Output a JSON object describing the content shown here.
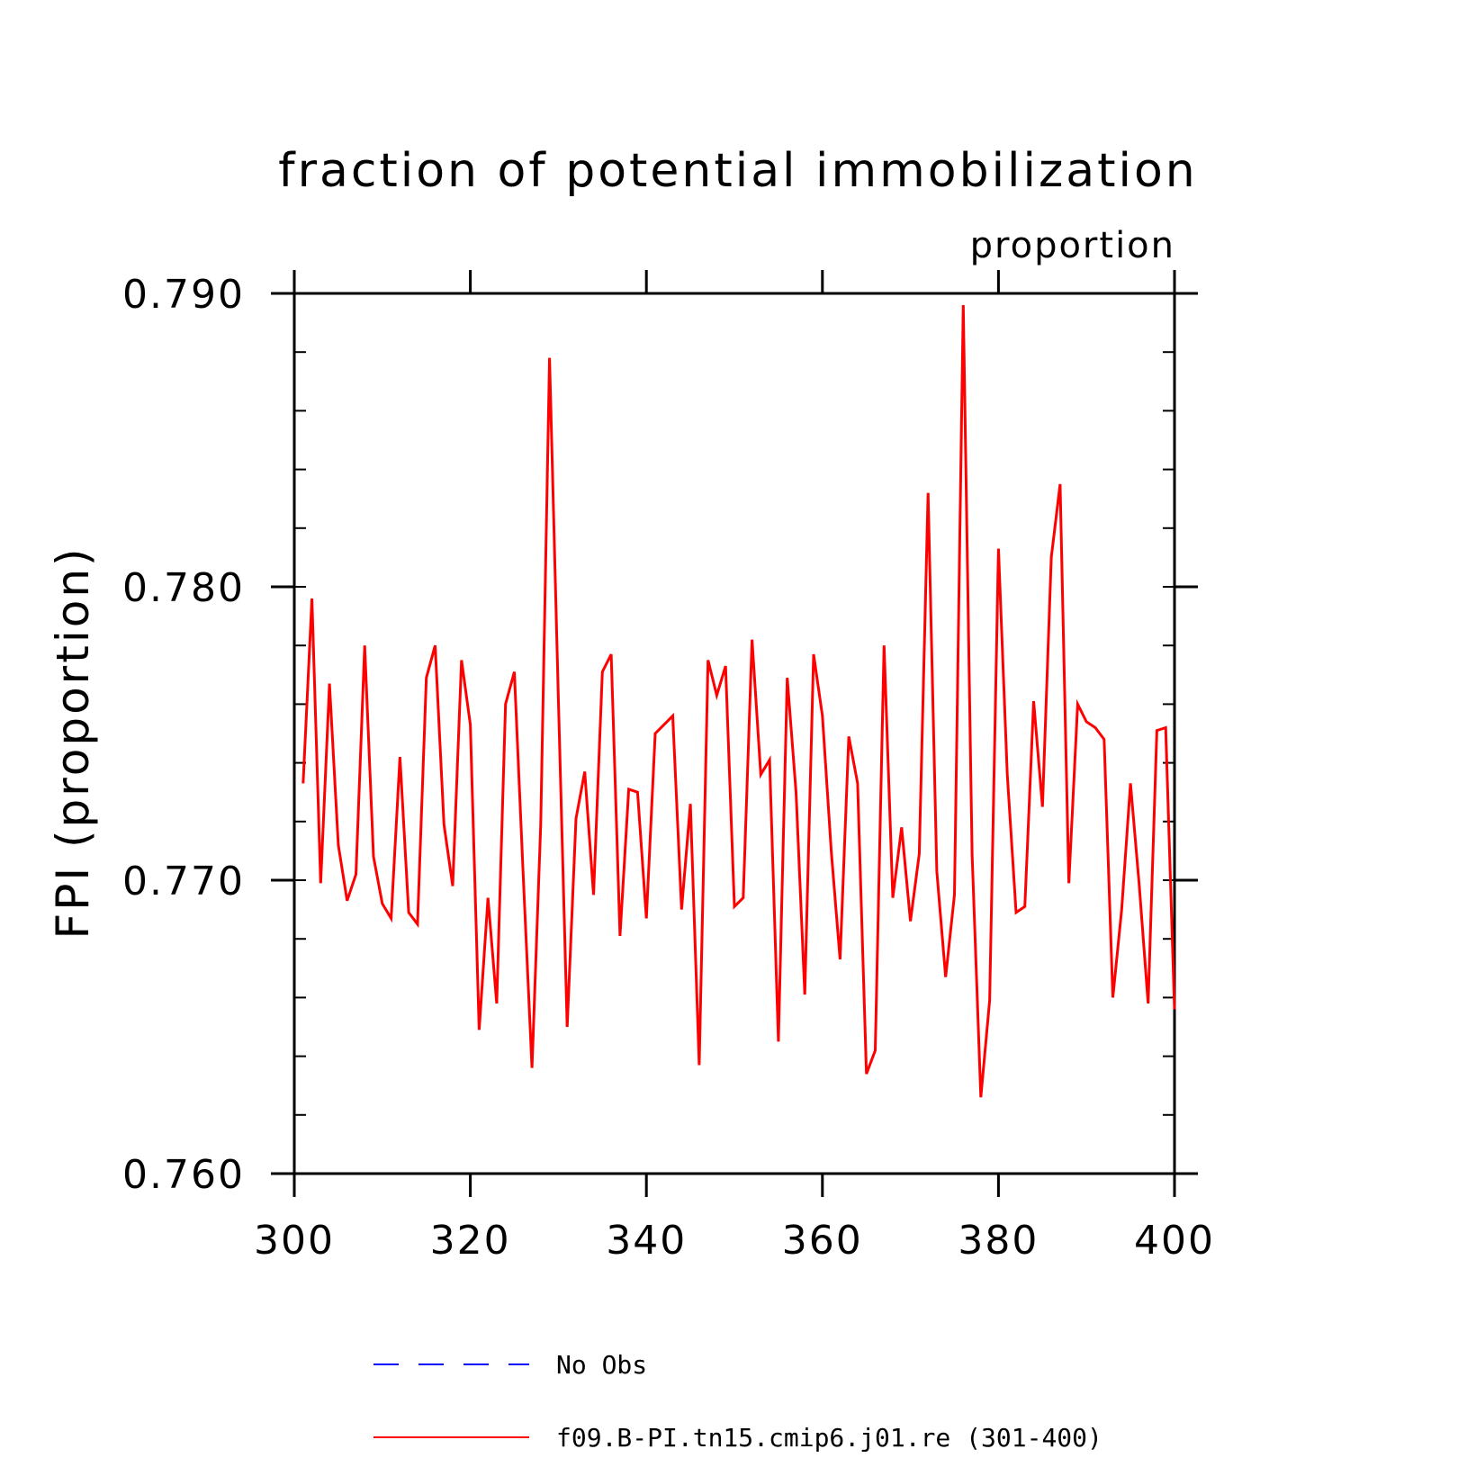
{
  "chart_data": {
    "type": "line",
    "title": "fraction of potential immobilization",
    "units_label": "proportion",
    "ylabel": "FPI   (proportion)",
    "xlabel": "",
    "xlim": [
      300,
      400
    ],
    "ylim": [
      0.76,
      0.79
    ],
    "x_ticks": [
      300,
      320,
      340,
      360,
      380,
      400
    ],
    "y_ticks": [
      0.76,
      0.77,
      0.78,
      0.79
    ],
    "x_tick_labels": [
      "300",
      "320",
      "340",
      "360",
      "380",
      "400"
    ],
    "y_tick_labels": [
      "0.760",
      "0.770",
      "0.780",
      "0.790"
    ],
    "grid": false,
    "legend_position": "bottom",
    "series": [
      {
        "name": "No Obs",
        "color": "#0000ff",
        "dash": "dashed",
        "x": [],
        "values": []
      },
      {
        "name": "f09.B-PI.tn15.cmip6.j01.re (301-400)",
        "color": "#ff0000",
        "dash": "solid",
        "x": [
          301,
          302,
          303,
          304,
          305,
          306,
          307,
          308,
          309,
          310,
          311,
          312,
          313,
          314,
          315,
          316,
          317,
          318,
          319,
          320,
          321,
          322,
          323,
          324,
          325,
          326,
          327,
          328,
          329,
          330,
          331,
          332,
          333,
          334,
          335,
          336,
          337,
          338,
          339,
          340,
          341,
          342,
          343,
          344,
          345,
          346,
          347,
          348,
          349,
          350,
          351,
          352,
          353,
          354,
          355,
          356,
          357,
          358,
          359,
          360,
          361,
          362,
          363,
          364,
          365,
          366,
          367,
          368,
          369,
          370,
          371,
          372,
          373,
          374,
          375,
          376,
          377,
          378,
          379,
          380,
          381,
          382,
          383,
          384,
          385,
          386,
          387,
          388,
          389,
          390,
          391,
          392,
          393,
          394,
          395,
          396,
          397,
          398,
          399,
          400
        ],
        "values": [
          0.7733,
          0.7796,
          0.7699,
          0.7767,
          0.7712,
          0.7693,
          0.7702,
          0.778,
          0.7708,
          0.7692,
          0.7687,
          0.7742,
          0.7689,
          0.7685,
          0.7769,
          0.778,
          0.7719,
          0.7698,
          0.7775,
          0.7753,
          0.7649,
          0.7694,
          0.7658,
          0.776,
          0.7771,
          0.7702,
          0.7636,
          0.7719,
          0.7878,
          0.7762,
          0.765,
          0.7721,
          0.7737,
          0.7695,
          0.7771,
          0.7777,
          0.7681,
          0.7731,
          0.773,
          0.7687,
          0.775,
          0.7753,
          0.7756,
          0.769,
          0.7726,
          0.7637,
          0.7775,
          0.7763,
          0.7773,
          0.7691,
          0.7694,
          0.7782,
          0.7736,
          0.7741,
          0.7645,
          0.7769,
          0.773,
          0.7661,
          0.7777,
          0.7756,
          0.771,
          0.7673,
          0.7749,
          0.7733,
          0.7634,
          0.7642,
          0.778,
          0.7694,
          0.7718,
          0.7686,
          0.7709,
          0.7832,
          0.7703,
          0.7667,
          0.7695,
          0.7896,
          0.7709,
          0.7626,
          0.7659,
          0.7813,
          0.7736,
          0.7689,
          0.7691,
          0.7761,
          0.7725,
          0.781,
          0.7835,
          0.7699,
          0.776,
          0.7754,
          0.7752,
          0.7748,
          0.766,
          0.769,
          0.7733,
          0.7698,
          0.7658,
          0.7751,
          0.7752,
          0.7656
        ]
      }
    ]
  }
}
